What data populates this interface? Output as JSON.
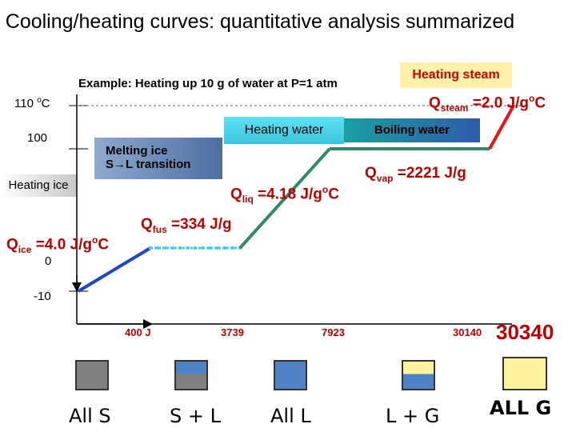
{
  "title": "Cooling/heating curves: quantitative analysis summarized",
  "subtitle": "Example: Heating up 10 g of water at P=1 atm",
  "boxes": {
    "steam": "Heating steam",
    "water": "Heating water",
    "boiling": "Boiling water",
    "melting_line1": "Melting ice",
    "melting_line2": "S→L transition",
    "ice": "Heating ice"
  },
  "constants": {
    "steam_q": "Q",
    "steam_sub": "steam",
    "steam_val": " =2.0 J/g",
    "steam_deg": "o",
    "steam_unit": "C",
    "vap_q": "Q",
    "vap_sub": "vap",
    "vap_val": " =2221 J/g",
    "liq_q": "Q",
    "liq_sub": "liq",
    "liq_val": " =4.18 J/g",
    "liq_deg": "o",
    "liq_unit": "C",
    "fus_q": "Q",
    "fus_sub": "fus",
    "fus_val": " =334 J/g",
    "ice_q": "Q",
    "ice_sub": "ice",
    "ice_val": " =4.0 J/g",
    "ice_deg": "o",
    "ice_unit": "C"
  },
  "y_ticks": {
    "t110": "110 ",
    "t110_deg": "o",
    "t110_unit": "C",
    "t100": "100",
    "t0": "0",
    "tm10": "-10"
  },
  "x_ticks": [
    "400 J",
    "3739",
    "7923",
    "30140",
    "30340"
  ],
  "phases": [
    "All  S",
    "S + L",
    "All L",
    "L + G",
    "ALL G"
  ],
  "colors": {
    "ice_line": "#1a48c8",
    "melt_line": "#3ad0e8",
    "water_line": "#2e8b6a",
    "steam_line": "#ee1111",
    "solid_fill": "#7f7f7f",
    "liquid_fill": "#4f81c7",
    "gas_fill": "#fff3a0"
  },
  "chart_data": {
    "type": "line",
    "xlabel": "",
    "ylabel": "",
    "x_tick_labels": [
      "400 J",
      "3739",
      "7923",
      "30140",
      "30340"
    ],
    "y_tick_labels": [
      "110 oC",
      "100",
      "0",
      "-10"
    ],
    "series": [
      {
        "x": [
          0,
          400
        ],
        "y": [
          -10,
          0
        ]
      },
      {
        "x": [
          400,
          3739
        ],
        "y": [
          0,
          0
        ]
      },
      {
        "x": [
          3739,
          7923
        ],
        "y": [
          0,
          100
        ]
      },
      {
        "x": [
          7923,
          30140
        ],
        "y": [
          100,
          100
        ]
      },
      {
        "x": [
          30140,
          30340
        ],
        "y": [
          100,
          110
        ]
      }
    ]
  }
}
